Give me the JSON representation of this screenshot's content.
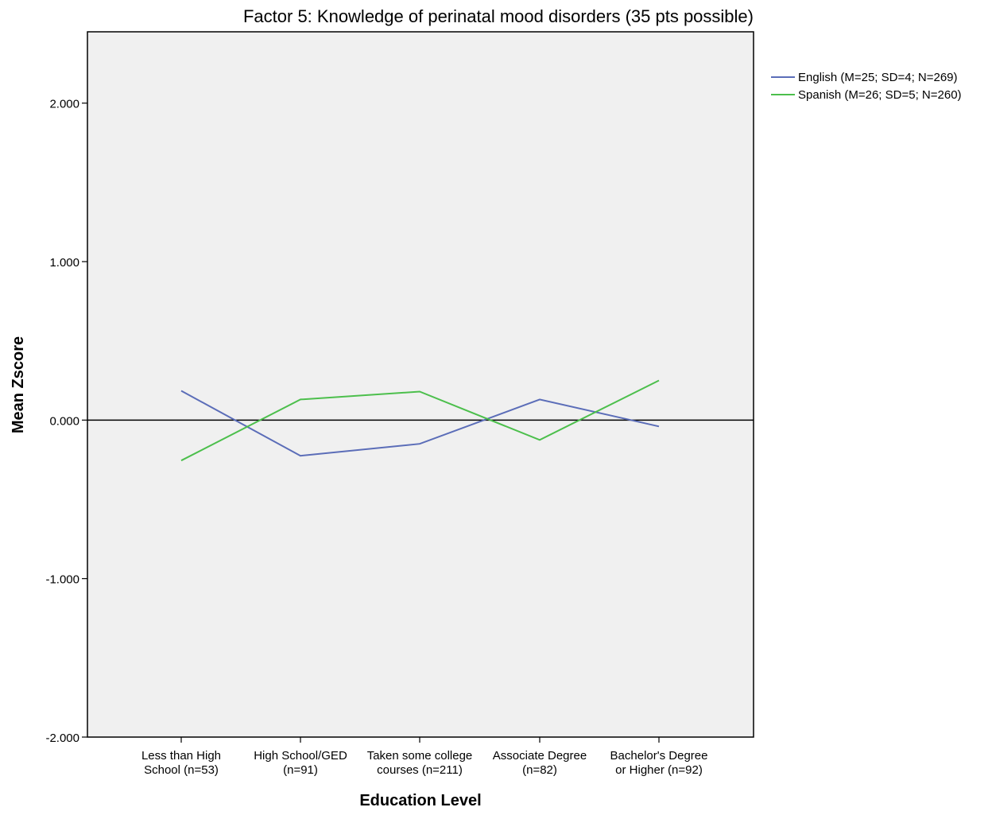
{
  "chart_data": {
    "type": "line",
    "title": "Factor 5:  Knowledge of perinatal mood disorders (35 pts possible)",
    "xlabel": "Education Level",
    "ylabel": "Mean Zscore",
    "categories": [
      [
        "Less than High",
        "School (n=53)"
      ],
      [
        "High School/GED",
        "(n=91)"
      ],
      [
        "Taken some college",
        "courses (n=211)"
      ],
      [
        "Associate Degree",
        "(n=82)"
      ],
      [
        "Bachelor's Degree",
        "or Higher (n=92)"
      ]
    ],
    "ylim": [
      -2,
      2.45
    ],
    "yticks": [
      -2,
      -1,
      0,
      1,
      2
    ],
    "ytick_labels": [
      "-2.000",
      "-1.000",
      "0.000",
      "1.000",
      "2.000"
    ],
    "reference_line_y": 0,
    "grid": false,
    "legend_position": "top-right, outside plot",
    "plot_background": "#f0f0f0",
    "series": [
      {
        "name": "English (M=25; SD=4; N=269)",
        "color": "#5b6db8",
        "values": [
          0.185,
          -0.225,
          -0.15,
          0.13,
          -0.04
        ]
      },
      {
        "name": "Spanish (M=26; SD=5; N=260)",
        "color": "#4cbf4c",
        "values": [
          -0.255,
          0.13,
          0.18,
          -0.125,
          0.25
        ]
      }
    ]
  }
}
